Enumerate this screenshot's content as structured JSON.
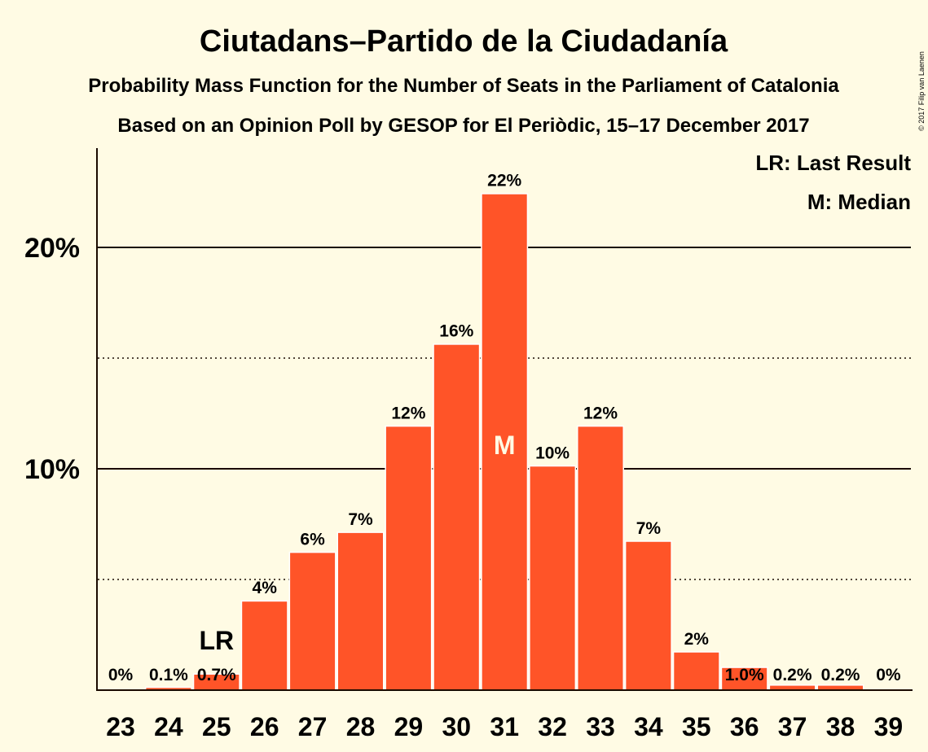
{
  "chart_data": {
    "type": "bar",
    "title": "Ciutadans–Partido de la Ciudadanía",
    "subtitle_lines": [
      "Probability Mass Function for the Number of Seats in the Parliament of Catalonia",
      "Based on an Opinion Poll by GESOP for El Periòdic, 15–17 December 2017"
    ],
    "copyright": "© 2017 Filip van Laenen",
    "legend": [
      {
        "label": "LR: Last Result"
      },
      {
        "label": "M: Median"
      }
    ],
    "legend_placement": "top-right",
    "categories": [
      "23",
      "24",
      "25",
      "26",
      "27",
      "28",
      "29",
      "30",
      "31",
      "32",
      "33",
      "34",
      "35",
      "36",
      "37",
      "38",
      "39"
    ],
    "values": [
      0,
      0.1,
      0.7,
      4.0,
      6.2,
      7.1,
      11.9,
      15.6,
      22.4,
      10.1,
      11.9,
      6.7,
      1.7,
      1.0,
      0.2,
      0.2,
      0
    ],
    "value_labels": [
      "0%",
      "0.1%",
      "0.7%",
      "4%",
      "6%",
      "7%",
      "12%",
      "16%",
      "22%",
      "10%",
      "12%",
      "7%",
      "2%",
      "1.0%",
      "0.2%",
      "0.2%",
      "0%"
    ],
    "yticks": [
      {
        "value": 10,
        "label": "10%",
        "style": "solid"
      },
      {
        "value": 20,
        "label": "20%",
        "style": "solid"
      }
    ],
    "minor_gridlines": [
      5,
      15
    ],
    "ylim": [
      0,
      24.5
    ],
    "last_result": {
      "category": "25",
      "marker": "LR"
    },
    "median": {
      "category": "31",
      "marker": "M"
    },
    "bar_color": "#ff5428",
    "background_color": "#fffbe4",
    "text_color": "#1a0a00",
    "grid": true
  }
}
